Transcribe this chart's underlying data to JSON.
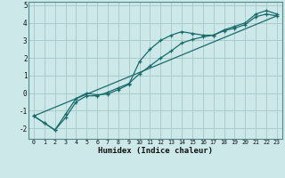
{
  "xlabel": "Humidex (Indice chaleur)",
  "bg_color": "#cce8e8",
  "grid_color": "#aacccc",
  "line_color": "#1a6b6b",
  "x_ticks": [
    0,
    1,
    2,
    3,
    4,
    5,
    6,
    7,
    8,
    9,
    10,
    11,
    12,
    13,
    14,
    15,
    16,
    17,
    18,
    19,
    20,
    21,
    22,
    23
  ],
  "y_ticks": [
    -2,
    -1,
    0,
    1,
    2,
    3,
    4,
    5
  ],
  "ylim": [
    -2.6,
    5.2
  ],
  "xlim": [
    -0.5,
    23.5
  ],
  "line1_x": [
    0,
    1,
    2,
    3,
    4,
    5,
    6,
    7,
    8,
    9,
    10,
    11,
    12,
    13,
    14,
    15,
    16,
    17,
    18,
    19,
    20,
    21,
    22,
    23
  ],
  "line1_y": [
    -1.3,
    -1.7,
    -2.1,
    -1.2,
    -0.3,
    0.0,
    -0.1,
    -0.05,
    0.2,
    0.5,
    1.8,
    2.5,
    3.0,
    3.3,
    3.5,
    3.4,
    3.3,
    3.3,
    3.6,
    3.8,
    4.0,
    4.5,
    4.7,
    4.5
  ],
  "line2_x": [
    0,
    1,
    2,
    3,
    4,
    5,
    6,
    7,
    8,
    9,
    10,
    11,
    12,
    13,
    14,
    15,
    16,
    17,
    18,
    19,
    20,
    21,
    22,
    23
  ],
  "line2_y": [
    -1.3,
    -1.7,
    -2.1,
    -1.4,
    -0.5,
    -0.15,
    -0.15,
    0.05,
    0.3,
    0.55,
    1.1,
    1.55,
    2.0,
    2.4,
    2.85,
    3.05,
    3.2,
    3.3,
    3.55,
    3.7,
    3.9,
    4.35,
    4.5,
    4.4
  ],
  "line3_x": [
    0,
    23
  ],
  "line3_y": [
    -1.3,
    4.4
  ]
}
